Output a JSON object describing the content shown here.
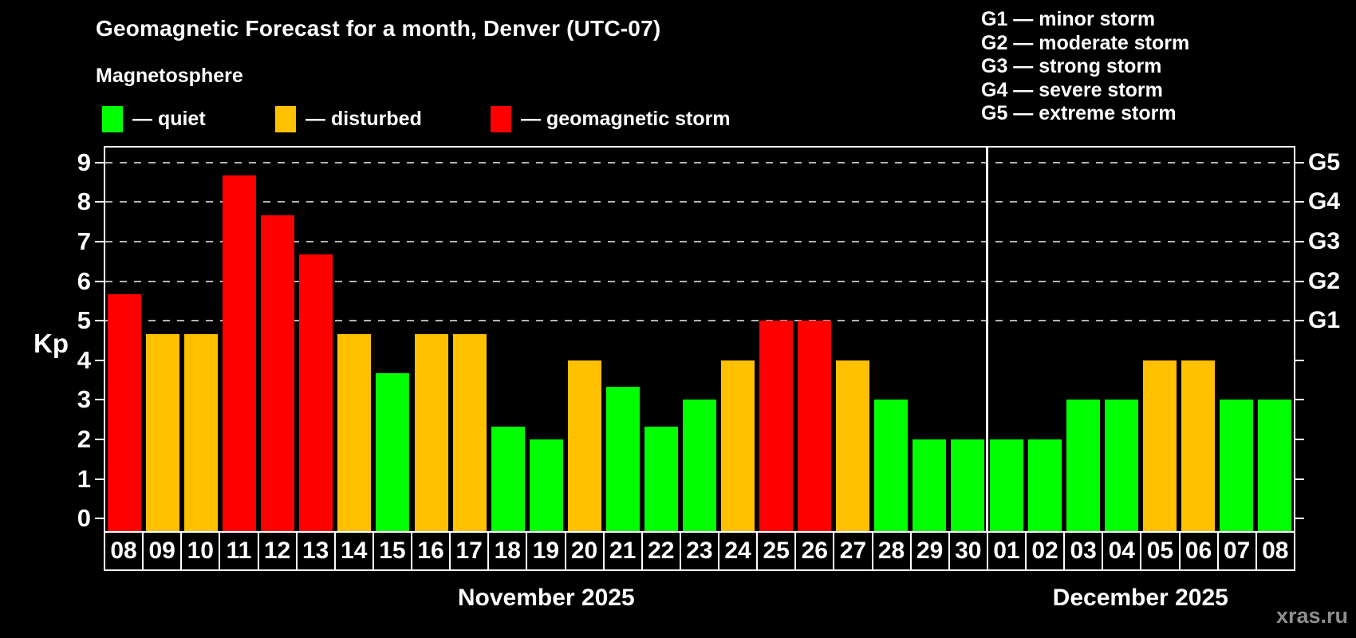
{
  "title": "Geomagnetic Forecast for a month, Denver (UTC-07)",
  "subtitle": "Magnetosphere",
  "legend": [
    {
      "key": "quiet",
      "label": "— quiet",
      "color": "#00ff00"
    },
    {
      "key": "disturbed",
      "label": "— disturbed",
      "color": "#ffc000"
    },
    {
      "key": "storm",
      "label": "— geomagnetic storm",
      "color": "#ff0000"
    }
  ],
  "g_legend": [
    {
      "level": "G1",
      "label": "— minor storm"
    },
    {
      "level": "G2",
      "label": "— moderate storm"
    },
    {
      "level": "G3",
      "label": "— strong storm"
    },
    {
      "level": "G4",
      "label": "— severe storm"
    },
    {
      "level": "G5",
      "label": "— extreme storm"
    }
  ],
  "axis": {
    "kp_label": "Kp",
    "y_ticks": [
      0,
      1,
      2,
      3,
      4,
      5,
      6,
      7,
      8,
      9
    ],
    "right_labels": {
      "5": "G1",
      "6": "G2",
      "7": "G3",
      "8": "G4",
      "9": "G5"
    }
  },
  "months": [
    {
      "name": "November 2025",
      "days": 23
    },
    {
      "name": "December 2025",
      "days": 8
    }
  ],
  "watermark": "xras.ru",
  "chart_data": {
    "type": "bar",
    "title": "Geomagnetic Forecast for a month, Denver (UTC-07)",
    "xlabel": "",
    "ylabel": "Kp",
    "ylim": [
      0,
      9
    ],
    "grid_levels": [
      5,
      6,
      7,
      8,
      9
    ],
    "legend_position": "top",
    "categories": [
      "08",
      "09",
      "10",
      "11",
      "12",
      "13",
      "14",
      "15",
      "16",
      "17",
      "18",
      "19",
      "20",
      "21",
      "22",
      "23",
      "24",
      "25",
      "26",
      "27",
      "28",
      "29",
      "30",
      "01",
      "02",
      "03",
      "04",
      "05",
      "06",
      "07",
      "08"
    ],
    "values": [
      5.67,
      4.67,
      4.67,
      8.67,
      7.67,
      6.67,
      4.67,
      3.67,
      4.67,
      4.67,
      2.33,
      2,
      4,
      3.33,
      2.33,
      3,
      4,
      5,
      5,
      4,
      3,
      2,
      2,
      2,
      2,
      3,
      3,
      4,
      4,
      3,
      3
    ],
    "status": [
      "storm",
      "disturbed",
      "disturbed",
      "storm",
      "storm",
      "storm",
      "disturbed",
      "quiet",
      "disturbed",
      "disturbed",
      "quiet",
      "quiet",
      "disturbed",
      "quiet",
      "quiet",
      "quiet",
      "disturbed",
      "storm",
      "storm",
      "disturbed",
      "quiet",
      "quiet",
      "quiet",
      "quiet",
      "quiet",
      "quiet",
      "quiet",
      "disturbed",
      "disturbed",
      "quiet",
      "quiet"
    ],
    "colors": {
      "quiet": "#00ff00",
      "disturbed": "#ffc000",
      "storm": "#ff0000"
    },
    "month_split_after_index": 22
  }
}
